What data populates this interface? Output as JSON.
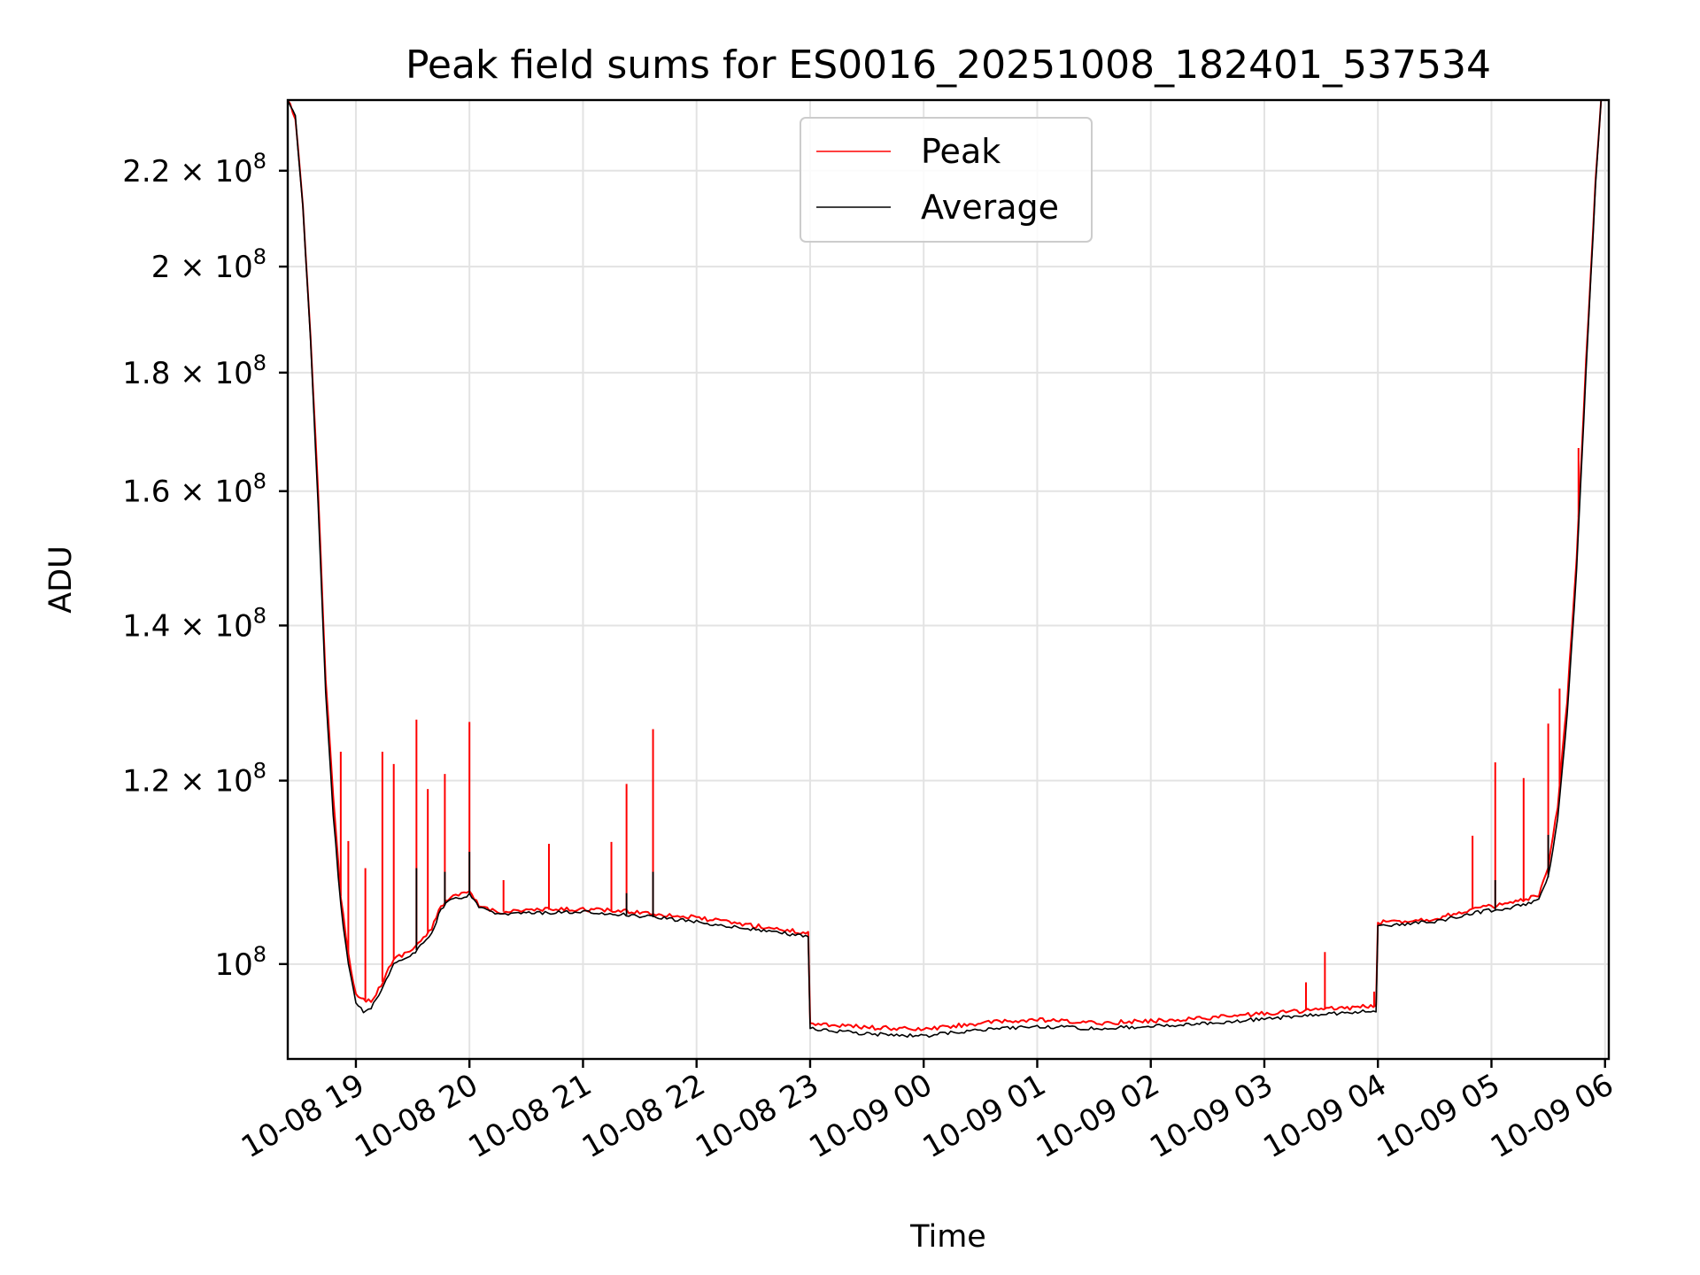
{
  "chart_data": {
    "type": "line",
    "title": "Peak field sums for ES0016_20251008_182401_537534",
    "xlabel": "Time",
    "ylabel": "ADU",
    "y_scale": "log",
    "ylim": [
      91000000,
      236000000
    ],
    "x_range": [
      "2025-10-08 18:24",
      "2025-10-09 06:02"
    ],
    "x_ticks": [
      {
        "t": "2025-10-08 19:00",
        "label": "10-08 19"
      },
      {
        "t": "2025-10-08 20:00",
        "label": "10-08 20"
      },
      {
        "t": "2025-10-08 21:00",
        "label": "10-08 21"
      },
      {
        "t": "2025-10-08 22:00",
        "label": "10-08 22"
      },
      {
        "t": "2025-10-08 23:00",
        "label": "10-08 23"
      },
      {
        "t": "2025-10-09 00:00",
        "label": "10-09 00"
      },
      {
        "t": "2025-10-09 01:00",
        "label": "10-09 01"
      },
      {
        "t": "2025-10-09 02:00",
        "label": "10-09 02"
      },
      {
        "t": "2025-10-09 03:00",
        "label": "10-09 03"
      },
      {
        "t": "2025-10-09 04:00",
        "label": "10-09 04"
      },
      {
        "t": "2025-10-09 05:00",
        "label": "10-09 05"
      },
      {
        "t": "2025-10-09 06:00",
        "label": "10-09 06"
      }
    ],
    "y_ticks": [
      {
        "value": 100000000,
        "mantissa": "",
        "exp": "8",
        "base": "10"
      },
      {
        "value": 120000000,
        "mantissa": "1.2",
        "exp": "8",
        "base": "10"
      },
      {
        "value": 140000000,
        "mantissa": "1.4",
        "exp": "8",
        "base": "10"
      },
      {
        "value": 160000000,
        "mantissa": "1.6",
        "exp": "8",
        "base": "10"
      },
      {
        "value": 180000000,
        "mantissa": "1.8",
        "exp": "8",
        "base": "10"
      },
      {
        "value": 200000000,
        "mantissa": "2",
        "exp": "8",
        "base": "10"
      },
      {
        "value": 220000000,
        "mantissa": "2.2",
        "exp": "8",
        "base": "10"
      }
    ],
    "grid": true,
    "legend": {
      "placement": "upper-center"
    },
    "series": [
      {
        "name": "Peak",
        "color": "#ff0000",
        "points": [
          [
            "2025-10-08 18:24",
            236000000
          ],
          [
            "2025-10-08 18:28",
            232000000
          ],
          [
            "2025-10-08 18:32",
            212000000
          ],
          [
            "2025-10-08 18:36",
            187000000
          ],
          [
            "2025-10-08 18:40",
            160000000
          ],
          [
            "2025-10-08 18:44",
            133000000
          ],
          [
            "2025-10-08 18:48",
            118000000
          ],
          [
            "2025-10-08 18:52",
            107000000
          ],
          [
            "2025-10-08 18:56",
            101000000
          ],
          [
            "2025-10-08 19:00",
            97000000
          ],
          [
            "2025-10-08 19:04",
            96500000
          ],
          [
            "2025-10-08 19:08",
            96500000
          ],
          [
            "2025-10-08 19:12",
            97500000
          ],
          [
            "2025-10-08 19:16",
            99000000
          ],
          [
            "2025-10-08 19:20",
            100500000
          ],
          [
            "2025-10-08 19:30",
            101500000
          ],
          [
            "2025-10-08 19:40",
            103500000
          ],
          [
            "2025-10-08 19:45",
            106000000
          ],
          [
            "2025-10-08 19:50",
            106800000
          ],
          [
            "2025-10-08 20:00",
            107400000
          ],
          [
            "2025-10-08 20:05",
            106000000
          ],
          [
            "2025-10-08 20:15",
            105300000
          ],
          [
            "2025-10-08 20:30",
            105500000
          ],
          [
            "2025-10-08 21:00",
            105600000
          ],
          [
            "2025-10-08 21:30",
            105300000
          ],
          [
            "2025-10-08 22:00",
            104700000
          ],
          [
            "2025-10-08 22:30",
            103900000
          ],
          [
            "2025-10-08 22:59",
            103100000
          ],
          [
            "2025-10-08 23:00",
            94300000
          ],
          [
            "2025-10-08 23:30",
            93900000
          ],
          [
            "2025-10-09 00:00",
            93700000
          ],
          [
            "2025-10-09 00:30",
            94300000
          ],
          [
            "2025-10-09 01:00",
            94600000
          ],
          [
            "2025-10-09 01:30",
            94300000
          ],
          [
            "2025-10-09 02:00",
            94500000
          ],
          [
            "2025-10-09 02:30",
            94800000
          ],
          [
            "2025-10-09 03:00",
            95200000
          ],
          [
            "2025-10-09 03:30",
            95600000
          ],
          [
            "2025-10-09 03:59",
            95900000
          ],
          [
            "2025-10-09 04:00",
            104200000
          ],
          [
            "2025-10-09 04:30",
            104600000
          ],
          [
            "2025-10-09 04:50",
            105600000
          ],
          [
            "2025-10-09 05:10",
            106200000
          ],
          [
            "2025-10-09 05:25",
            107000000
          ],
          [
            "2025-10-09 05:30",
            110000000
          ],
          [
            "2025-10-09 05:35",
            117000000
          ],
          [
            "2025-10-09 05:40",
            130000000
          ],
          [
            "2025-10-09 05:45",
            150000000
          ],
          [
            "2025-10-09 05:50",
            182000000
          ],
          [
            "2025-10-09 05:55",
            218000000
          ],
          [
            "2025-10-09 05:58",
            236000000
          ]
        ],
        "spikes": [
          [
            "2025-10-08 18:52",
            123500000
          ],
          [
            "2025-10-08 18:56",
            113000000
          ],
          [
            "2025-10-08 19:05",
            110000000
          ],
          [
            "2025-10-08 19:14",
            123500000
          ],
          [
            "2025-10-08 19:20",
            122000000
          ],
          [
            "2025-10-08 19:32",
            127500000
          ],
          [
            "2025-10-08 19:38",
            119000000
          ],
          [
            "2025-10-08 19:47",
            120800000
          ],
          [
            "2025-10-08 20:00",
            127200000
          ],
          [
            "2025-10-08 20:18",
            108700000
          ],
          [
            "2025-10-08 20:42",
            112700000
          ],
          [
            "2025-10-08 21:15",
            112900000
          ],
          [
            "2025-10-08 21:23",
            119600000
          ],
          [
            "2025-10-08 21:37",
            126300000
          ],
          [
            "2025-10-09 03:22",
            98200000
          ],
          [
            "2025-10-09 03:32",
            101200000
          ],
          [
            "2025-10-09 03:58",
            97300000
          ],
          [
            "2025-10-09 04:50",
            113600000
          ],
          [
            "2025-10-09 05:02",
            122200000
          ],
          [
            "2025-10-09 05:17",
            120300000
          ],
          [
            "2025-10-09 05:30",
            127000000
          ],
          [
            "2025-10-09 05:36",
            131500000
          ],
          [
            "2025-10-09 05:46",
            167000000
          ]
        ]
      },
      {
        "name": "Average",
        "color": "#000000",
        "points": [
          [
            "2025-10-08 18:24",
            236000000
          ],
          [
            "2025-10-08 18:28",
            232000000
          ],
          [
            "2025-10-08 18:32",
            212000000
          ],
          [
            "2025-10-08 18:36",
            186000000
          ],
          [
            "2025-10-08 18:40",
            158000000
          ],
          [
            "2025-10-08 18:44",
            131000000
          ],
          [
            "2025-10-08 18:48",
            116000000
          ],
          [
            "2025-10-08 18:52",
            106000000
          ],
          [
            "2025-10-08 18:56",
            100000000
          ],
          [
            "2025-10-08 19:00",
            96200000
          ],
          [
            "2025-10-08 19:04",
            95400000
          ],
          [
            "2025-10-08 19:08",
            95800000
          ],
          [
            "2025-10-08 19:12",
            97000000
          ],
          [
            "2025-10-08 19:16",
            98500000
          ],
          [
            "2025-10-08 19:20",
            100000000
          ],
          [
            "2025-10-08 19:30",
            101000000
          ],
          [
            "2025-10-08 19:40",
            103000000
          ],
          [
            "2025-10-08 19:45",
            105700000
          ],
          [
            "2025-10-08 19:50",
            106500000
          ],
          [
            "2025-10-08 20:00",
            107100000
          ],
          [
            "2025-10-08 20:05",
            105800000
          ],
          [
            "2025-10-08 20:15",
            105000000
          ],
          [
            "2025-10-08 20:30",
            105200000
          ],
          [
            "2025-10-08 21:00",
            105300000
          ],
          [
            "2025-10-08 21:30",
            104900000
          ],
          [
            "2025-10-08 22:00",
            104300000
          ],
          [
            "2025-10-08 22:30",
            103500000
          ],
          [
            "2025-10-08 22:59",
            102800000
          ],
          [
            "2025-10-08 23:00",
            93800000
          ],
          [
            "2025-10-08 23:30",
            93300000
          ],
          [
            "2025-10-09 00:00",
            93100000
          ],
          [
            "2025-10-09 00:30",
            93700000
          ],
          [
            "2025-10-09 01:00",
            94000000
          ],
          [
            "2025-10-09 01:30",
            93800000
          ],
          [
            "2025-10-09 02:00",
            94000000
          ],
          [
            "2025-10-09 02:30",
            94300000
          ],
          [
            "2025-10-09 03:00",
            94700000
          ],
          [
            "2025-10-09 03:30",
            95100000
          ],
          [
            "2025-10-09 03:59",
            95500000
          ],
          [
            "2025-10-09 04:00",
            103900000
          ],
          [
            "2025-10-09 04:30",
            104300000
          ],
          [
            "2025-10-09 04:50",
            105200000
          ],
          [
            "2025-10-09 05:10",
            105800000
          ],
          [
            "2025-10-09 05:25",
            106500000
          ],
          [
            "2025-10-09 05:30",
            109000000
          ],
          [
            "2025-10-09 05:35",
            115500000
          ],
          [
            "2025-10-09 05:40",
            128000000
          ],
          [
            "2025-10-09 05:45",
            148000000
          ],
          [
            "2025-10-09 05:50",
            180000000
          ],
          [
            "2025-10-09 05:55",
            217000000
          ],
          [
            "2025-10-09 05:58",
            236000000
          ]
        ],
        "spikes": [
          [
            "2025-10-08 19:32",
            110000000
          ],
          [
            "2025-10-08 19:47",
            109600000
          ],
          [
            "2025-10-08 20:00",
            111800000
          ],
          [
            "2025-10-08 21:37",
            109600000
          ],
          [
            "2025-10-08 21:23",
            107300000
          ],
          [
            "2025-10-09 05:02",
            108700000
          ],
          [
            "2025-10-09 05:30",
            113700000
          ]
        ]
      }
    ]
  }
}
